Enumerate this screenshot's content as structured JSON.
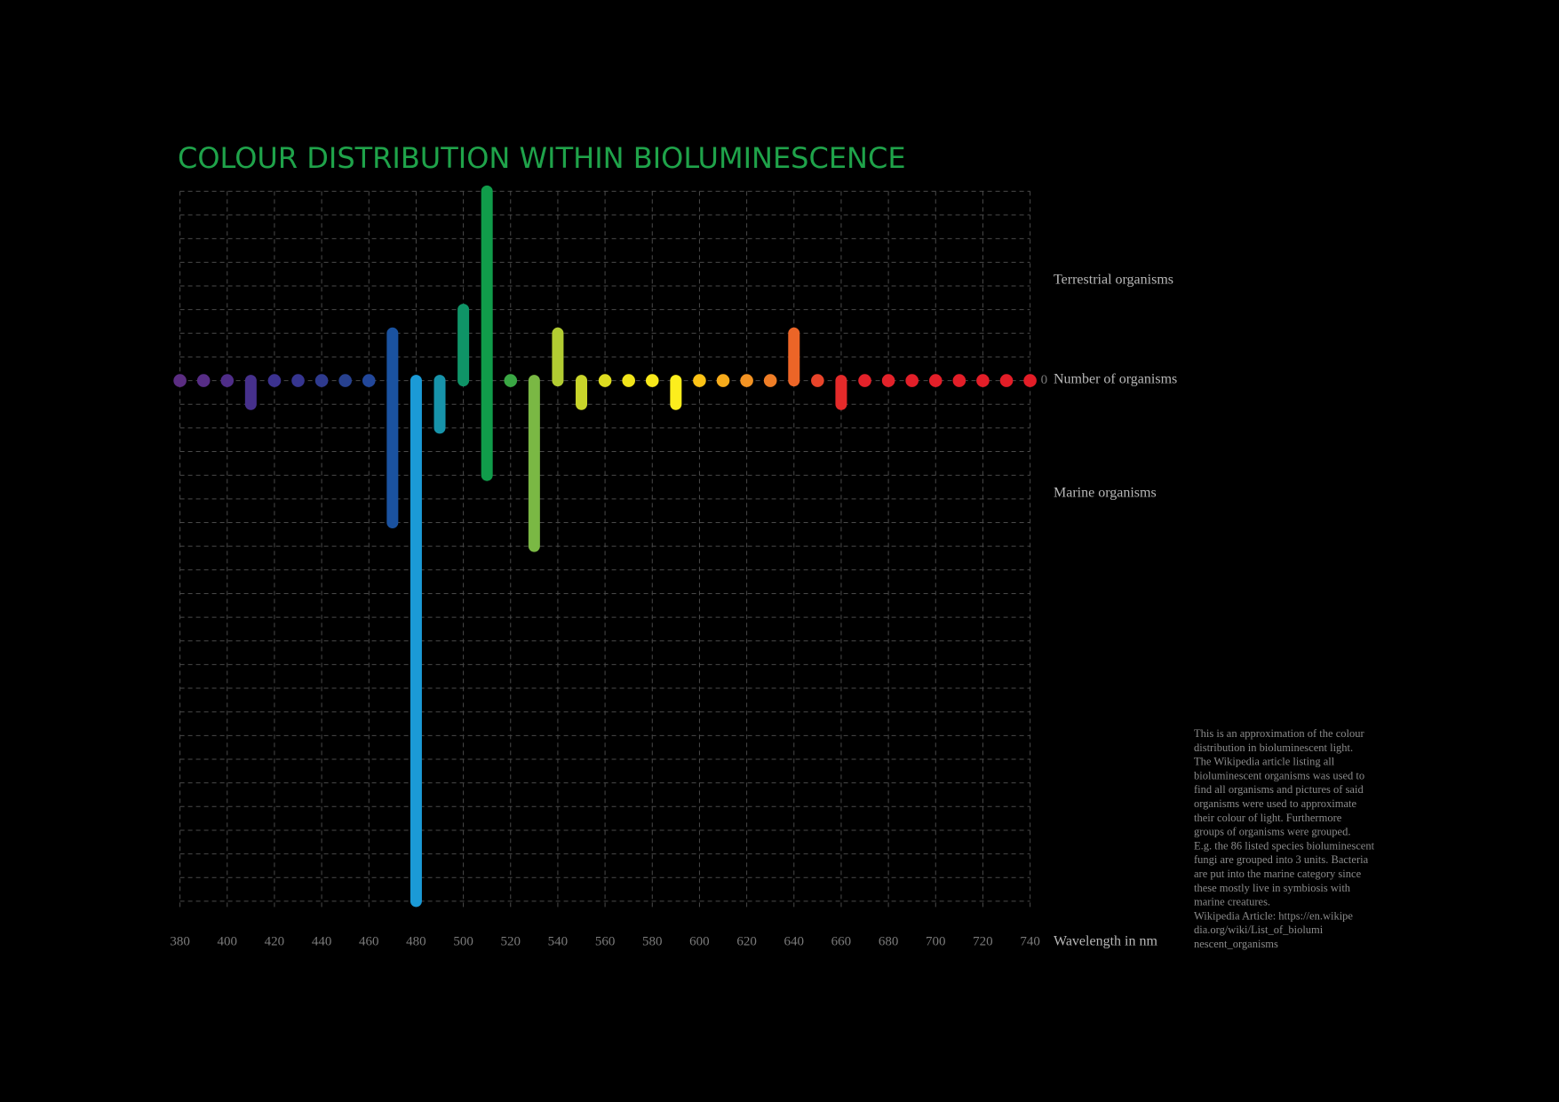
{
  "chart_data": {
    "type": "diverging-bar",
    "title": "COLOUR DISTRIBUTION WITHIN BIOLUMINESCENCE",
    "xlabel": "Wavelength in nm",
    "ylabel": "Number of organisms",
    "x": [
      380,
      390,
      400,
      410,
      420,
      430,
      440,
      450,
      460,
      470,
      480,
      490,
      500,
      510,
      520,
      530,
      540,
      550,
      560,
      570,
      580,
      590,
      600,
      610,
      620,
      630,
      640,
      650,
      660,
      670,
      680,
      690,
      700,
      710,
      720,
      730,
      740
    ],
    "colors": [
      "#5b2d82",
      "#572d86",
      "#4f2d88",
      "#46308c",
      "#3c3290",
      "#363590",
      "#2e3a8e",
      "#27418f",
      "#22479a",
      "#1a52a0",
      "#1b9ad6",
      "#1793aa",
      "#0f9467",
      "#109c4a",
      "#3aa744",
      "#7ab844",
      "#b2cc32",
      "#c9d52a",
      "#dedc20",
      "#f1e41a",
      "#f8e81a",
      "#fcee1d",
      "#fdc316",
      "#f7ab1b",
      "#f39323",
      "#ef7d26",
      "#ec6527",
      "#e8442a",
      "#e42a2a",
      "#e3222a",
      "#e3222a",
      "#e31f29",
      "#e31f29",
      "#e31e28",
      "#e31e28",
      "#e31d27",
      "#e31d27"
    ],
    "series": [
      {
        "name": "Terrestrial organisms",
        "side": "above",
        "values": [
          0,
          0,
          0,
          0,
          0,
          0,
          0,
          0,
          0,
          2,
          0,
          0,
          3,
          8,
          0,
          0,
          2,
          0,
          0,
          0,
          0,
          0,
          0,
          0,
          0,
          0,
          2,
          0,
          0,
          0,
          0,
          0,
          0,
          0,
          0,
          0,
          0
        ]
      },
      {
        "name": "Marine organisms",
        "side": "below",
        "values": [
          0,
          0,
          0,
          1,
          0,
          0,
          0,
          0,
          0,
          6,
          22,
          2,
          0,
          4,
          0,
          7,
          0,
          1,
          0,
          0,
          0,
          1,
          0,
          0,
          0,
          0,
          0,
          0,
          1,
          0,
          0,
          0,
          0,
          0,
          0,
          0,
          0
        ]
      }
    ],
    "xlim": [
      380,
      740
    ],
    "xticks": [
      380,
      400,
      420,
      440,
      460,
      480,
      500,
      520,
      540,
      560,
      580,
      600,
      620,
      640,
      660,
      680,
      700,
      720,
      740
    ],
    "ylim": [
      -22,
      8
    ],
    "yticks": [
      0
    ],
    "ygrid": [
      -22,
      -21,
      -20,
      -19,
      -18,
      -17,
      -16,
      -15,
      -14,
      -13,
      -12,
      -11,
      -10,
      -9,
      -8,
      -7,
      -6,
      -5,
      -4,
      -3,
      -2,
      -1,
      0,
      1,
      2,
      3,
      4,
      5,
      6,
      7,
      8
    ],
    "note": [
      "This is an approximation of the colour",
      "distribution in bioluminescent light.",
      "The Wikipedia article listing all",
      "bioluminescent organisms was used to",
      "find all organisms and pictures of said",
      "organisms were used to approximate",
      "their colour of light. Furthermore",
      "groups of organisms were grouped.",
      "E.g. the 86 listed species bioluminescent",
      "fungi are grouped into 3 units. Bacteria",
      "are put into the marine category since",
      "these mostly live in symbiosis with",
      "marine creatures.",
      "Wikipedia Article: https://en.wikipe",
      "dia.org/wiki/List_of_biolumi",
      "nescent_organisms"
    ]
  }
}
